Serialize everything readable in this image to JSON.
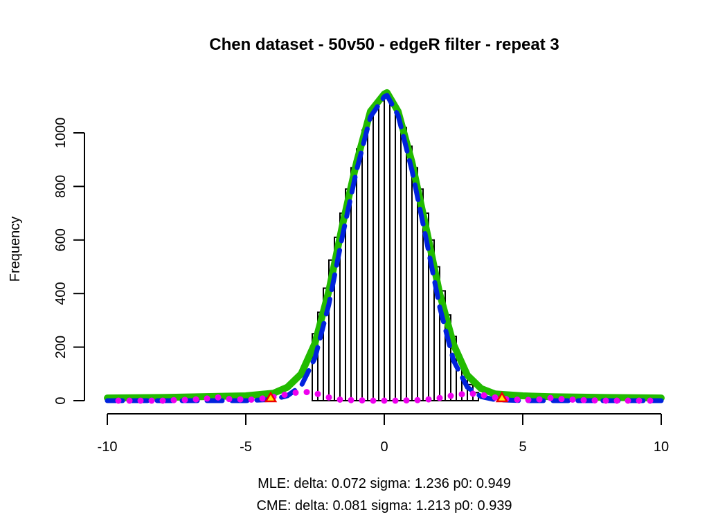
{
  "chart_data": {
    "type": "bar",
    "title": "Chen dataset - 50v50 - edgeR filter - repeat 3",
    "xlabel": "",
    "ylabel": "Frequency",
    "xlim": [
      -10,
      10
    ],
    "ylim": [
      0,
      1150
    ],
    "x_ticks": [
      -10,
      -5,
      0,
      5,
      10
    ],
    "y_ticks": [
      0,
      200,
      400,
      600,
      800,
      1000
    ],
    "x_tick_labels": [
      "-10",
      "-5",
      "0",
      "5",
      "10"
    ],
    "y_tick_labels": [
      "0",
      "200",
      "400",
      "600",
      "800",
      "1000"
    ],
    "subtitle_lines": [
      "MLE: delta: 0.072 sigma: 1.236 p0: 0.949",
      "CME: delta: 0.081 sigma: 1.213 p0: 0.939"
    ],
    "histogram": {
      "name": "",
      "bin_width": 0.2,
      "bins": [
        {
          "x": -2.5,
          "y": 250
        },
        {
          "x": -2.3,
          "y": 330
        },
        {
          "x": -2.1,
          "y": 420
        },
        {
          "x": -1.9,
          "y": 525
        },
        {
          "x": -1.7,
          "y": 610
        },
        {
          "x": -1.5,
          "y": 700
        },
        {
          "x": -1.3,
          "y": 790
        },
        {
          "x": -1.1,
          "y": 870
        },
        {
          "x": -0.9,
          "y": 940
        },
        {
          "x": -0.7,
          "y": 1010
        },
        {
          "x": -0.5,
          "y": 1070
        },
        {
          "x": -0.3,
          "y": 1105
        },
        {
          "x": -0.1,
          "y": 1120
        },
        {
          "x": 0.1,
          "y": 1130
        },
        {
          "x": 0.3,
          "y": 1110
        },
        {
          "x": 0.5,
          "y": 1075
        },
        {
          "x": 0.7,
          "y": 1020
        },
        {
          "x": 0.9,
          "y": 950
        },
        {
          "x": 1.1,
          "y": 870
        },
        {
          "x": 1.3,
          "y": 790
        },
        {
          "x": 1.5,
          "y": 700
        },
        {
          "x": 1.7,
          "y": 600
        },
        {
          "x": 1.9,
          "y": 500
        },
        {
          "x": 2.1,
          "y": 410
        },
        {
          "x": 2.3,
          "y": 320
        },
        {
          "x": 2.5,
          "y": 240
        },
        {
          "x": 2.7,
          "y": 165
        },
        {
          "x": 2.9,
          "y": 105
        },
        {
          "x": 3.1,
          "y": 60
        },
        {
          "x": 3.3,
          "y": 30
        }
      ]
    },
    "series": [
      {
        "name": "",
        "color": "#22bb00",
        "style": "solid",
        "type": "line",
        "x": [
          -10,
          -8,
          -6,
          -5,
          -4,
          -3.5,
          -3,
          -2.5,
          -2,
          -1.5,
          -1,
          -0.5,
          0,
          0.1,
          0.5,
          1,
          1.5,
          2,
          2.5,
          3,
          3.5,
          4,
          5,
          6,
          8,
          10
        ],
        "y": [
          10,
          12,
          16,
          18,
          28,
          50,
          100,
          215,
          410,
          660,
          890,
          1080,
          1145,
          1150,
          1080,
          890,
          650,
          400,
          210,
          95,
          45,
          25,
          18,
          15,
          12,
          10
        ]
      },
      {
        "name": "",
        "color": "#0022dd",
        "style": "dashed",
        "type": "line",
        "x": [
          -10,
          -8,
          -6,
          -5,
          -4,
          -3.5,
          -3,
          -2.5,
          -2,
          -1.5,
          -1,
          -0.5,
          0,
          0.1,
          0.5,
          1,
          1.5,
          2,
          2.5,
          3,
          3.5,
          4,
          5,
          6,
          8,
          10
        ],
        "y": [
          0,
          0,
          0,
          0,
          5,
          18,
          55,
          160,
          360,
          620,
          860,
          1060,
          1135,
          1140,
          1065,
          860,
          610,
          350,
          150,
          50,
          15,
          4,
          0,
          0,
          0,
          0
        ]
      },
      {
        "name": "",
        "color": "#ee00ee",
        "style": "points",
        "type": "scatter",
        "x": [
          -9.6,
          -9.2,
          -8.8,
          -8.4,
          -8.0,
          -7.6,
          -7.2,
          -6.8,
          -6.4,
          -6.0,
          -5.6,
          -5.2,
          -4.8,
          -4.4,
          -4.0,
          -3.6,
          -3.2,
          -2.8,
          -2.4,
          -2.0,
          -1.6,
          -1.2,
          -0.8,
          -0.4,
          0.0,
          0.4,
          0.8,
          1.2,
          1.6,
          2.0,
          2.4,
          2.8,
          3.2,
          3.6,
          4.0,
          4.4,
          4.8,
          5.2,
          5.6,
          6.0,
          6.4,
          6.8,
          7.2,
          7.6,
          8.0,
          8.4,
          8.8,
          9.2,
          9.6
        ],
        "y": [
          0,
          0,
          0,
          0,
          0,
          2,
          3,
          5,
          8,
          12,
          6,
          5,
          4,
          8,
          14,
          22,
          30,
          32,
          25,
          12,
          4,
          2,
          1,
          0,
          0,
          0,
          1,
          2,
          5,
          10,
          18,
          24,
          26,
          20,
          12,
          6,
          4,
          3,
          5,
          10,
          6,
          4,
          2,
          1,
          0,
          0,
          0,
          0,
          0
        ]
      }
    ],
    "markers": [
      {
        "x": -4.1,
        "y": 5,
        "shape": "triangle",
        "fill": "#ffee00",
        "stroke": "#ee0000"
      },
      {
        "x": 4.25,
        "y": 5,
        "shape": "triangle",
        "fill": "#ffee00",
        "stroke": "#ee0000"
      }
    ],
    "grid": false,
    "legend": "none"
  }
}
